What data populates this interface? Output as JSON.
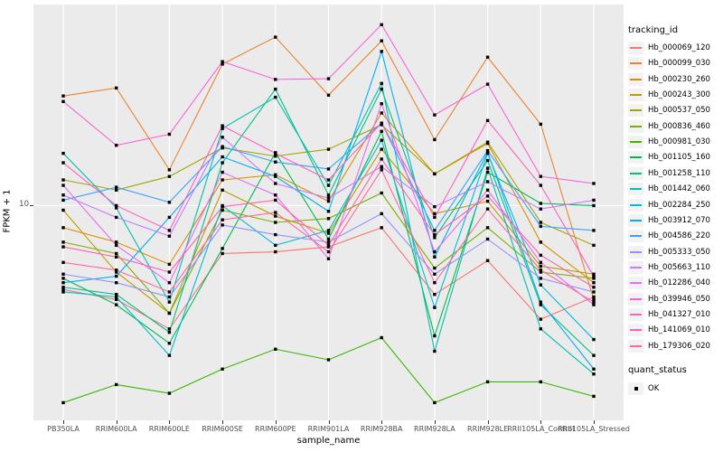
{
  "axes": {
    "x_title": "sample_name",
    "y_title": "FPKM + 1",
    "y_tick_label": "10"
  },
  "legends": {
    "tracking": {
      "title": "tracking_id"
    },
    "quant": {
      "title": "quant_status",
      "items": [
        {
          "label": "OK",
          "symbol": "black-square"
        }
      ]
    }
  },
  "chart_data": {
    "type": "line",
    "title": "",
    "xlabel": "sample_name",
    "ylabel": "FPKM + 1",
    "x_scale": "categorical",
    "y_scale": "log10",
    "ylim": [
      1.45,
      61
    ],
    "y_ticks": [
      {
        "value": 10,
        "label": "10"
      }
    ],
    "grid": "major-only",
    "legend_position": "right",
    "panel_bg": "#EBEBEB",
    "grid_color": "#FFFFFF",
    "point_color": "#000000",
    "point_shape": "filled-square",
    "quant_status": "OK",
    "categories": [
      "PB350LA",
      "RRIM600LA",
      "RRIM600LE",
      "RRIM600SE",
      "RRIM600PE",
      "RRIM901LA",
      "RRIM928BA",
      "RRIM928LA",
      "RRIM928LE",
      "RRII105LA_Control",
      "RRII105LA_Stressed"
    ],
    "series": [
      {
        "name": "Hb_000069_120",
        "color": "#F8766D",
        "values": [
          4.7,
          4.3,
          3.3,
          6.5,
          6.6,
          6.9,
          8.2,
          4.5,
          6.1,
          3.6,
          4.4
        ]
      },
      {
        "name": "Hb_000099_030",
        "color": "#EA8331",
        "values": [
          26.8,
          28.8,
          13.8,
          35.7,
          45.5,
          27.0,
          44.0,
          18.1,
          38.0,
          20.8,
          4.3
        ]
      },
      {
        "name": "Hb_000230_260",
        "color": "#D89000",
        "values": [
          8.2,
          7.2,
          5.9,
          12.6,
          13.2,
          10.4,
          23.0,
          13.3,
          17.5,
          7.2,
          5.0
        ]
      },
      {
        "name": "Hb_000243_300",
        "color": "#C09B00",
        "values": [
          9.6,
          5.5,
          3.8,
          11.5,
          9.1,
          7.8,
          16.6,
          9.3,
          10.4,
          5.8,
          5.4
        ]
      },
      {
        "name": "Hb_000537_050",
        "color": "#A3A500",
        "values": [
          12.6,
          11.5,
          13.0,
          16.8,
          15.6,
          16.6,
          20.7,
          13.3,
          17.7,
          8.6,
          7.0
        ]
      },
      {
        "name": "Hb_000836_460",
        "color": "#7CAE00",
        "values": [
          7.2,
          6.5,
          3.8,
          9.6,
          8.6,
          8.9,
          11.2,
          5.7,
          8.2,
          5.5,
          5.2
        ]
      },
      {
        "name": "Hb_000981_030",
        "color": "#39B600",
        "values": [
          1.7,
          2.0,
          1.85,
          2.3,
          2.75,
          2.5,
          3.05,
          1.7,
          2.05,
          2.05,
          1.8
        ]
      },
      {
        "name": "Hb_001105_160",
        "color": "#00BB4E",
        "values": [
          5.2,
          4.1,
          2.9,
          6.8,
          16.1,
          7.4,
          19.5,
          3.1,
          13.5,
          10.2,
          10.0
        ]
      },
      {
        "name": "Hb_001258_110",
        "color": "#00C087",
        "values": [
          4.8,
          4.5,
          3.2,
          14.7,
          28.5,
          11.0,
          28.5,
          7.5,
          15.0,
          4.1,
          2.6
        ]
      },
      {
        "name": "Hb_001442_060",
        "color": "#00C0AF",
        "values": [
          16.0,
          9.8,
          4.2,
          20.0,
          26.5,
          12.0,
          30.0,
          2.7,
          14.0,
          3.3,
          2.2
        ]
      },
      {
        "name": "Hb_002284_250",
        "color": "#00BCD8",
        "values": [
          4.6,
          4.4,
          2.6,
          10.0,
          7.0,
          8.0,
          18.0,
          4.0,
          16.0,
          4.9,
          3.0
        ]
      },
      {
        "name": "Hb_003912_070",
        "color": "#00B0F6",
        "values": [
          5.0,
          5.3,
          9.0,
          15.5,
          13.0,
          9.5,
          40.0,
          6.3,
          16.2,
          4.2,
          2.3
        ]
      },
      {
        "name": "Hb_004586_220",
        "color": "#35A2FF",
        "values": [
          10.5,
          11.8,
          10.3,
          17.0,
          14.8,
          13.9,
          21.0,
          8.0,
          16.4,
          8.3,
          8.0
        ]
      },
      {
        "name": "Hb_005333_050",
        "color": "#9590FF",
        "values": [
          5.4,
          5.0,
          4.4,
          8.4,
          7.7,
          7.2,
          9.3,
          5.4,
          7.4,
          5.2,
          4.6
        ]
      },
      {
        "name": "Hb_005663_110",
        "color": "#C77CFF",
        "values": [
          11.0,
          9.0,
          7.6,
          18.5,
          12.2,
          10.7,
          14.2,
          9.9,
          12.4,
          9.7,
          10.5
        ]
      },
      {
        "name": "Hb_012286_040",
        "color": "#E76BF3",
        "values": [
          12.0,
          7.0,
          5.0,
          13.5,
          11.0,
          6.2,
          25.0,
          6.6,
          11.5,
          6.0,
          4.1
        ]
      },
      {
        "name": "Hb_039946_050",
        "color": "#FA62DB",
        "values": [
          25.5,
          17.2,
          19.0,
          36.5,
          31.1,
          31.3,
          50.9,
          22.6,
          29.8,
          13.0,
          12.2
        ]
      },
      {
        "name": "Hb_041327_010",
        "color": "#FF61C3",
        "values": [
          14.7,
          10.0,
          8.0,
          20.5,
          16.0,
          12.6,
          21.0,
          9.0,
          21.5,
          12.0,
          5.3
        ]
      },
      {
        "name": "Hb_141069_010",
        "color": "#FF62AC",
        "values": [
          6.9,
          6.3,
          5.5,
          9.9,
          10.5,
          7.0,
          15.2,
          7.7,
          10.9,
          6.4,
          4.8
        ]
      },
      {
        "name": "Hb_179306_020",
        "color": "#FF6A98",
        "values": [
          6.0,
          5.6,
          4.6,
          8.8,
          9.4,
          6.6,
          13.8,
          5.0,
          9.7,
          5.6,
          4.2
        ]
      }
    ]
  }
}
